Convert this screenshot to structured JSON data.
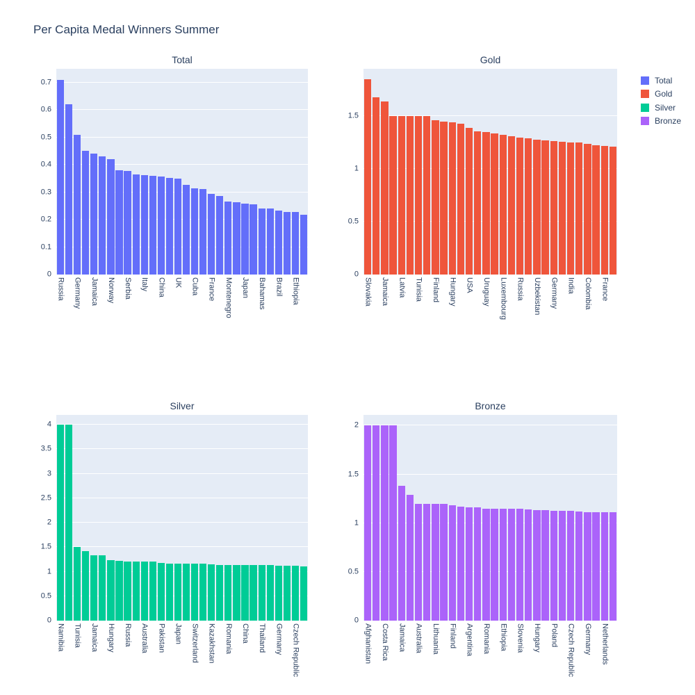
{
  "figure": {
    "title": "Per Capita Medal Winners Summer"
  },
  "colors": {
    "plot_background": "#E5ECF6",
    "grid": "#FFFFFF",
    "text": "#2a3f5f",
    "total": "#636EFA",
    "gold": "#EF553B",
    "silver": "#00CC96",
    "bronze": "#AB63FA"
  },
  "legend": {
    "position": "top-right",
    "items": [
      {
        "label": "Total",
        "color": "#636EFA"
      },
      {
        "label": "Gold",
        "color": "#EF553B"
      },
      {
        "label": "Silver",
        "color": "#00CC96"
      },
      {
        "label": "Bronze",
        "color": "#AB63FA"
      }
    ]
  },
  "chart_data": [
    {
      "type": "bar",
      "title": "Total",
      "color": "#636EFA",
      "n_bars": 30,
      "x_tick_every": 2,
      "x_tick_labels": [
        "Russia",
        "Germany",
        "Jamaica",
        "Norway",
        "Serbia",
        "Italy",
        "China",
        "UK",
        "Cuba",
        "France",
        "Montenegro",
        "Japan",
        "Bahamas",
        "Brazil",
        "Ethiopia"
      ],
      "values": [
        0.71,
        0.62,
        0.51,
        0.45,
        0.44,
        0.43,
        0.42,
        0.381,
        0.378,
        0.366,
        0.362,
        0.36,
        0.358,
        0.352,
        0.349,
        0.327,
        0.315,
        0.311,
        0.295,
        0.287,
        0.267,
        0.264,
        0.259,
        0.255,
        0.242,
        0.24,
        0.232,
        0.229,
        0.227,
        0.217
      ],
      "yticks": [
        0,
        0.1,
        0.2,
        0.3,
        0.4,
        0.5,
        0.6,
        0.7
      ],
      "ylim": [
        0,
        0.75
      ],
      "grid": true
    },
    {
      "type": "bar",
      "title": "Gold",
      "color": "#EF553B",
      "n_bars": 30,
      "x_tick_every": 2,
      "x_tick_labels": [
        "Slovakia",
        "Jamaica",
        "Latvia",
        "Tunisia",
        "Finland",
        "Hungary",
        "USA",
        "Uruguay",
        "Luxembourg",
        "Russia",
        "Uzbekistan",
        "Germany",
        "India",
        "Colombia",
        "France"
      ],
      "values": [
        1.85,
        1.68,
        1.64,
        1.5,
        1.5,
        1.5,
        1.5,
        1.5,
        1.46,
        1.45,
        1.44,
        1.43,
        1.39,
        1.36,
        1.35,
        1.335,
        1.325,
        1.31,
        1.3,
        1.29,
        1.28,
        1.27,
        1.265,
        1.26,
        1.255,
        1.25,
        1.24,
        1.225,
        1.22,
        1.21
      ],
      "yticks": [
        0,
        0.5,
        1,
        1.5
      ],
      "ylim": [
        0,
        1.95
      ],
      "grid": true
    },
    {
      "type": "bar",
      "title": "Silver",
      "color": "#00CC96",
      "n_bars": 30,
      "x_tick_every": 2,
      "x_tick_labels": [
        "Namibia",
        "Tunisia",
        "Jamaica",
        "Hungary",
        "Russia",
        "Australia",
        "Pakistan",
        "Japan",
        "Switzerland",
        "Kazakhstan",
        "Romania",
        "China",
        "Thailand",
        "Germany",
        "Czech Republic"
      ],
      "values": [
        4,
        4,
        1.5,
        1.42,
        1.34,
        1.33,
        1.23,
        1.22,
        1.2,
        1.2,
        1.2,
        1.2,
        1.18,
        1.17,
        1.17,
        1.16,
        1.16,
        1.16,
        1.15,
        1.14,
        1.14,
        1.13,
        1.13,
        1.13,
        1.13,
        1.13,
        1.12,
        1.12,
        1.12,
        1.11
      ],
      "yticks": [
        0,
        0.5,
        1,
        1.5,
        2,
        2.5,
        3,
        3.5,
        4
      ],
      "ylim": [
        0,
        4.2
      ],
      "grid": true
    },
    {
      "type": "bar",
      "title": "Bronze",
      "color": "#AB63FA",
      "n_bars": 30,
      "x_tick_every": 2,
      "x_tick_labels": [
        "Afghanistan",
        "Costa Rica",
        "Jamaica",
        "Australia",
        "Lithuania",
        "Finland",
        "Argentina",
        "Romania",
        "Ethiopia",
        "Slovenia",
        "Hungary",
        "Poland",
        "Czech Republic",
        "Germany",
        "Netherlands"
      ],
      "values": [
        2,
        2,
        2,
        2,
        1.38,
        1.29,
        1.2,
        1.2,
        1.2,
        1.2,
        1.18,
        1.17,
        1.16,
        1.16,
        1.15,
        1.15,
        1.15,
        1.15,
        1.145,
        1.14,
        1.135,
        1.13,
        1.125,
        1.125,
        1.125,
        1.12,
        1.115,
        1.115,
        1.115,
        1.11
      ],
      "yticks": [
        0,
        0.5,
        1,
        1.5,
        2
      ],
      "ylim": [
        0,
        2.11
      ],
      "grid": true
    }
  ]
}
